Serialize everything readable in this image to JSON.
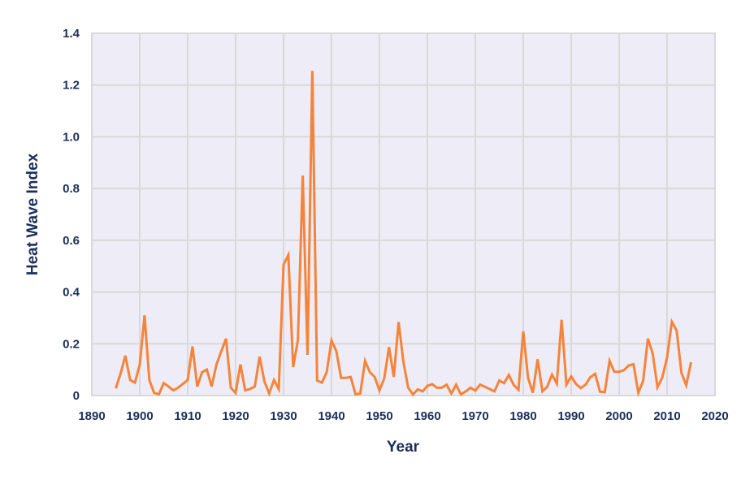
{
  "chart_data": {
    "type": "line",
    "title": "",
    "xlabel": "Year",
    "ylabel": "Heat Wave Index",
    "xlim": [
      1890,
      2020
    ],
    "ylim": [
      0,
      1.4
    ],
    "grid": true,
    "legend": null,
    "x_ticks": [
      "1890",
      "1900",
      "1910",
      "1920",
      "1930",
      "1940",
      "1950",
      "1960",
      "1970",
      "1980",
      "1990",
      "2000",
      "2010",
      "2020"
    ],
    "y_ticks": [
      "0",
      "0.2",
      "0.4",
      "0.6",
      "0.8",
      "1.0",
      "1.2",
      "1.4"
    ],
    "series": [
      {
        "name": "Heat Wave Index",
        "color": "#f5843a",
        "x": [
          1895,
          1896,
          1897,
          1898,
          1899,
          1900,
          1901,
          1902,
          1903,
          1904,
          1905,
          1906,
          1907,
          1908,
          1909,
          1910,
          1911,
          1912,
          1913,
          1914,
          1915,
          1916,
          1917,
          1918,
          1919,
          1920,
          1921,
          1922,
          1923,
          1924,
          1925,
          1926,
          1927,
          1928,
          1929,
          1930,
          1931,
          1932,
          1933,
          1934,
          1935,
          1936,
          1937,
          1938,
          1939,
          1940,
          1941,
          1942,
          1943,
          1944,
          1945,
          1946,
          1947,
          1948,
          1949,
          1950,
          1951,
          1952,
          1953,
          1954,
          1955,
          1956,
          1957,
          1958,
          1959,
          1960,
          1961,
          1962,
          1963,
          1964,
          1965,
          1966,
          1967,
          1968,
          1969,
          1970,
          1971,
          1972,
          1973,
          1974,
          1975,
          1976,
          1977,
          1978,
          1979,
          1980,
          1981,
          1982,
          1983,
          1984,
          1985,
          1986,
          1987,
          1988,
          1989,
          1990,
          1991,
          1992,
          1993,
          1994,
          1995,
          1996,
          1997,
          1998,
          1999,
          2000,
          2001,
          2002,
          2003,
          2004,
          2005,
          2006,
          2007,
          2008,
          2009,
          2010,
          2011,
          2012,
          2013,
          2014,
          2015
        ],
        "values": [
          0.028,
          0.085,
          0.154,
          0.06,
          0.05,
          0.12,
          0.31,
          0.06,
          0.01,
          0.005,
          0.048,
          0.035,
          0.02,
          0.03,
          0.045,
          0.06,
          0.19,
          0.035,
          0.09,
          0.1,
          0.035,
          0.12,
          0.17,
          0.22,
          0.03,
          0.01,
          0.12,
          0.02,
          0.025,
          0.035,
          0.15,
          0.055,
          0.008,
          0.06,
          0.025,
          0.506,
          0.543,
          0.11,
          0.215,
          0.85,
          0.157,
          1.255,
          0.058,
          0.05,
          0.09,
          0.213,
          0.172,
          0.068,
          0.068,
          0.072,
          0.005,
          0.008,
          0.134,
          0.09,
          0.072,
          0.02,
          0.066,
          0.187,
          0.072,
          0.284,
          0.13,
          0.03,
          0.004,
          0.024,
          0.016,
          0.037,
          0.044,
          0.03,
          0.03,
          0.042,
          0.008,
          0.042,
          0.004,
          0.016,
          0.03,
          0.019,
          0.042,
          0.034,
          0.025,
          0.016,
          0.058,
          0.048,
          0.079,
          0.041,
          0.022,
          0.248,
          0.068,
          0.011,
          0.14,
          0.016,
          0.034,
          0.081,
          0.046,
          0.293,
          0.042,
          0.074,
          0.045,
          0.029,
          0.042,
          0.071,
          0.084,
          0.015,
          0.013,
          0.134,
          0.092,
          0.092,
          0.098,
          0.116,
          0.121,
          0.011,
          0.056,
          0.22,
          0.163,
          0.032,
          0.069,
          0.147,
          0.285,
          0.251,
          0.088,
          0.04,
          0.129
        ]
      }
    ]
  },
  "style": {
    "plot_bg": "#eeecf6",
    "grid_color": "#d9d9d9",
    "text_color": "#1b2f5c",
    "line_color": "#f5843a"
  }
}
